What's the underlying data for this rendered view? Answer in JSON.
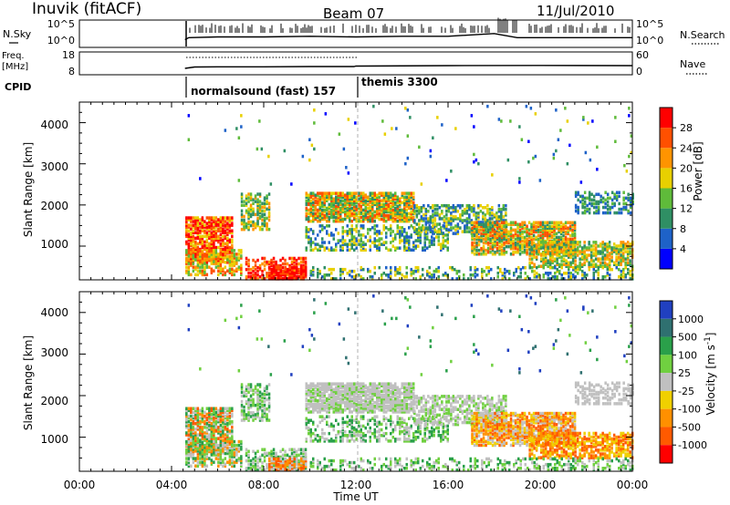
{
  "header": {
    "station": "Inuvik (fitACF)",
    "beam": "Beam 07",
    "date": "11/Jul/2010"
  },
  "chart_data": [
    {
      "type": "line",
      "panel": "noise",
      "left_label": "N.Sky",
      "right_label": "N.Search",
      "left_ticks": [
        "10^5",
        "10^0"
      ],
      "right_ticks": [
        "10^5",
        "10^0"
      ],
      "x": [
        "04:35",
        "04:45",
        "06:00",
        "08:00",
        "10:00",
        "12:00",
        "14:00",
        "16:00",
        "18:00",
        "19:00",
        "20:00",
        "22:00",
        "24:00"
      ],
      "series": [
        {
          "values": [
            0.3,
            0.45,
            0.5,
            0.5,
            0.55,
            0.5,
            0.55,
            0.55,
            0.75,
            0.45,
            0.45,
            0.45,
            0.45
          ]
        }
      ]
    },
    {
      "type": "line",
      "panel": "frequency",
      "left_label": "Freq.",
      "left_unit": "[MHz]",
      "right_label": "Nave",
      "left_ticks": [
        "18",
        "8"
      ],
      "right_ticks": [
        "60",
        "0"
      ],
      "x": [
        "04:35",
        "05:00",
        "06:00",
        "08:00",
        "10:00",
        "11:55",
        "12:00",
        "16:00",
        "20:00",
        "24:00"
      ],
      "series": [
        {
          "values": [
            10.8,
            11.4,
            11.5,
            11.5,
            11.6,
            11.6,
            11.8,
            12.0,
            12.1,
            12.0
          ]
        }
      ]
    },
    {
      "type": "table",
      "panel": "cpid",
      "label": "CPID",
      "segments": [
        {
          "start": "04:35",
          "label": "normalsound (fast) 157"
        },
        {
          "start": "12:00",
          "label": "themis 3300"
        }
      ]
    },
    {
      "type": "heatmap",
      "panel": "power",
      "xlabel": "",
      "ylabel": "Slant Range [km]",
      "y_ticks": [
        "1000",
        "2000",
        "3000",
        "4000"
      ],
      "ylim": [
        180,
        4500
      ],
      "colorbar_label": "Power [dB]",
      "colorbar_ticks": [
        "4",
        "8",
        "12",
        "16",
        "20",
        "24",
        "28"
      ],
      "colors": [
        "#0000ff",
        "#1e62c8",
        "#2f8f64",
        "#5fbb3a",
        "#e8d000",
        "#ff9400",
        "#ff5000",
        "#ff0000"
      ]
    },
    {
      "type": "heatmap",
      "panel": "velocity",
      "xlabel": "Time UT",
      "ylabel": "Slant Range [km]",
      "y_ticks": [
        "1000",
        "2000",
        "3000",
        "4000"
      ],
      "ylim": [
        180,
        4500
      ],
      "x_ticks": [
        "00:00",
        "04:00",
        "08:00",
        "12:00",
        "16:00",
        "20:00",
        "00:00"
      ],
      "colorbar_label": "Velocity [m s^-1]",
      "colorbar_ticks": [
        "1000",
        "500",
        "100",
        "25",
        "-25",
        "-100",
        "-500",
        "-1000"
      ],
      "colors": [
        "#2040c0",
        "#2f7070",
        "#2aa04a",
        "#70d040",
        "#c0c0c0",
        "#f0d000",
        "#ff9000",
        "#ff5a00",
        "#ff0000"
      ]
    }
  ]
}
